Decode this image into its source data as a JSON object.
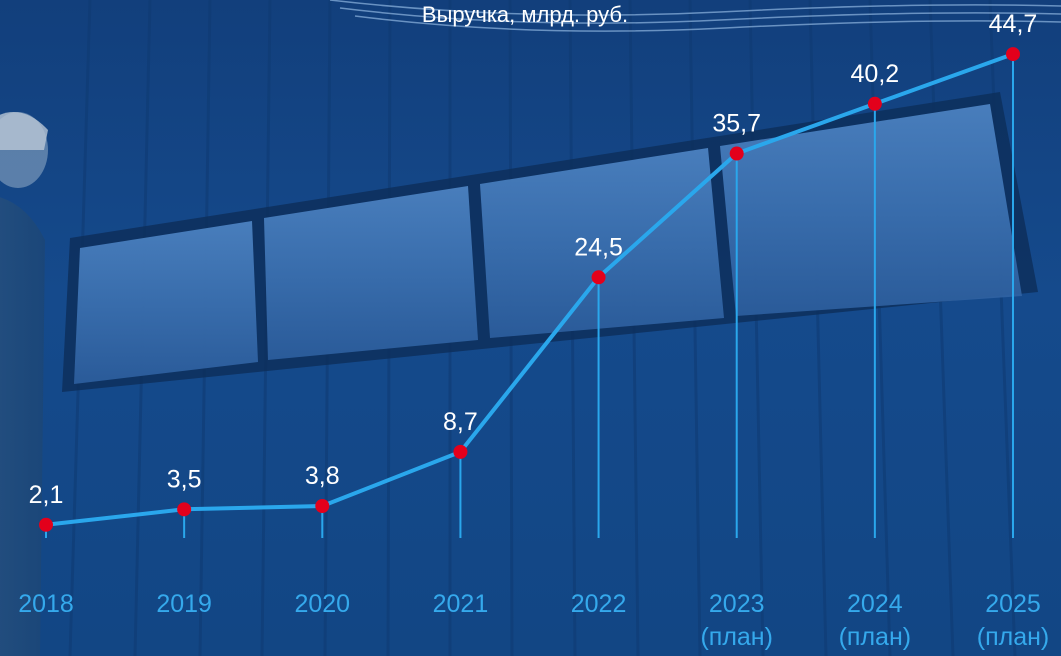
{
  "chart_data": {
    "type": "line",
    "title": "Выручка, млрд. руб.",
    "categories": [
      {
        "year": "2018",
        "note": ""
      },
      {
        "year": "2019",
        "note": ""
      },
      {
        "year": "2020",
        "note": ""
      },
      {
        "year": "2021",
        "note": ""
      },
      {
        "year": "2022",
        "note": ""
      },
      {
        "year": "2023",
        "note": "(план)"
      },
      {
        "year": "2024",
        "note": "(план)"
      },
      {
        "year": "2025",
        "note": "(план)"
      }
    ],
    "series": [
      {
        "values": [
          2.1,
          3.5,
          3.8,
          8.7,
          24.5,
          35.7,
          40.2,
          44.7
        ],
        "value_labels": [
          "2,1",
          "3,5",
          "3,8",
          "8,7",
          "24,5",
          "35,7",
          "40,2",
          "44,7"
        ]
      }
    ],
    "line_color": "#2aa7ec",
    "marker_color": "#e3001b",
    "label_color": "#ffffff",
    "axis_label_color": "#35a9ec",
    "grid": false
  }
}
